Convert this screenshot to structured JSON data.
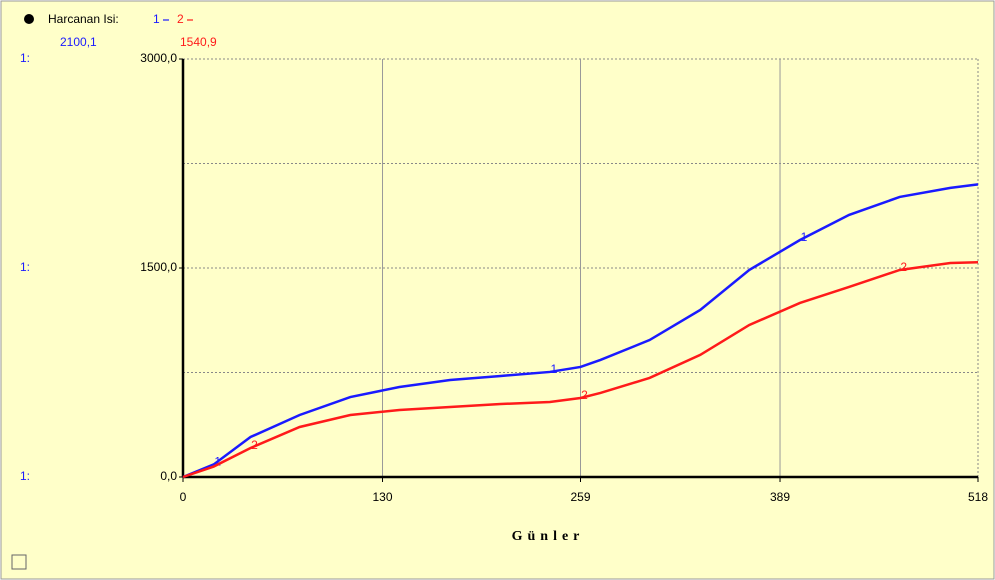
{
  "chart_data": {
    "type": "line",
    "title": "Harcanan Isi:",
    "x_label": "Günler",
    "axis_series_labels": [
      "1:",
      "1:",
      "1:"
    ],
    "end_value_labels": [
      "2100,1",
      "1540,9"
    ],
    "x": [
      0,
      20,
      44,
      76,
      109,
      141,
      174,
      207,
      239,
      259,
      272,
      304,
      337,
      369,
      402,
      434,
      467,
      500,
      518
    ],
    "series": [
      {
        "name": "1",
        "color": "#1a1aff",
        "values": [
          0,
          90,
          287,
          445,
          574,
          646,
          696,
          725,
          754,
          790,
          840,
          983,
          1199,
          1486,
          1701,
          1881,
          2010,
          2075,
          2100.1
        ]
      },
      {
        "name": "2",
        "color": "#ff1a1a",
        "values": [
          0,
          75,
          208,
          359,
          445,
          481,
          502,
          524,
          538,
          567,
          603,
          711,
          876,
          1091,
          1249,
          1364,
          1486,
          1536,
          1540.9
        ]
      }
    ],
    "xlim": [
      0,
      518
    ],
    "xticks": [
      0,
      130,
      259,
      389,
      518
    ],
    "ylim": [
      0,
      3000
    ],
    "yticks": [
      {
        "value": 0,
        "label": "0,0"
      },
      {
        "value": 1500,
        "label": "1500,0"
      },
      {
        "value": 3000,
        "label": "3000,0"
      }
    ],
    "yminor": [
      750,
      2250
    ],
    "grid": true
  }
}
